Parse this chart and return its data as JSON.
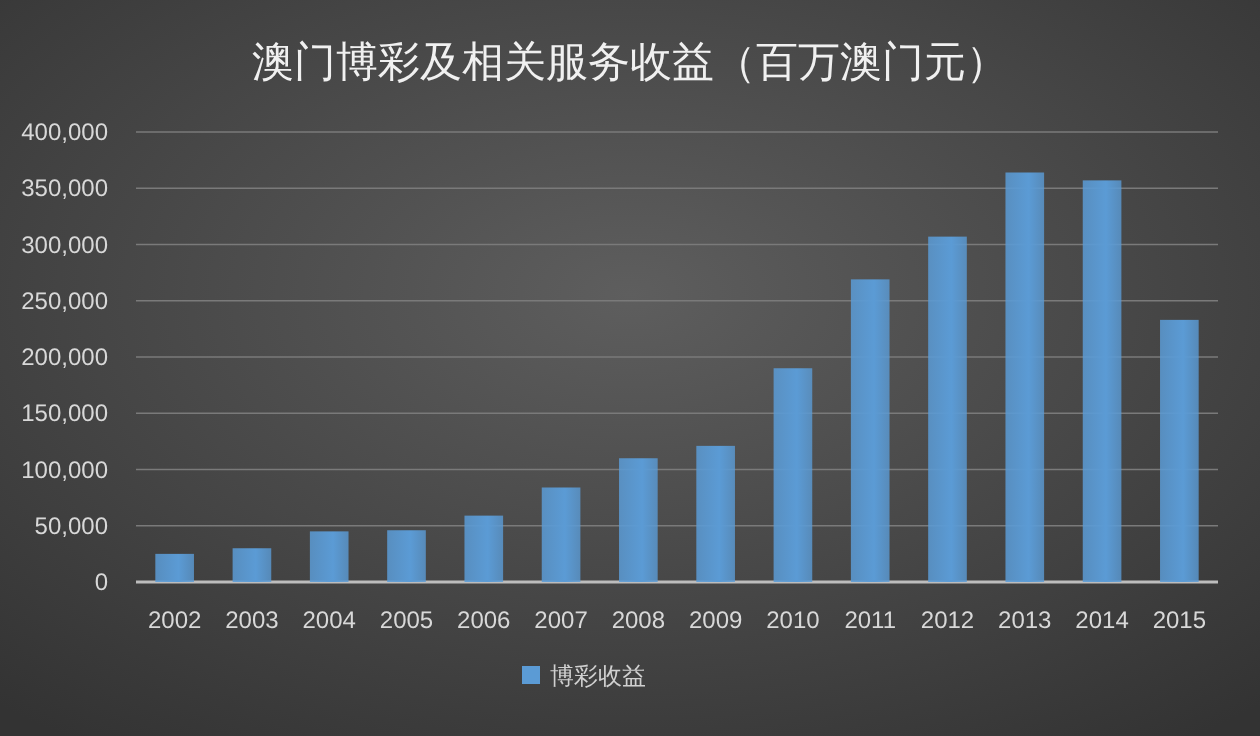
{
  "chart_data": {
    "type": "bar",
    "title": "澳门博彩及相关服务收益（百万澳门元）",
    "categories": [
      "2002",
      "2003",
      "2004",
      "2005",
      "2006",
      "2007",
      "2008",
      "2009",
      "2010",
      "2011",
      "2012",
      "2013",
      "2014",
      "2015"
    ],
    "series": [
      {
        "name": "博彩收益",
        "color": "#5b9bd5",
        "values": [
          25000,
          30000,
          45000,
          46000,
          59000,
          84000,
          110000,
          121000,
          190000,
          269000,
          307000,
          364000,
          357000,
          233000
        ]
      }
    ],
    "ylim": [
      0,
      400000
    ],
    "yticks": [
      0,
      {
        "value": 50000,
        "label": "50,000"
      },
      {
        "value": 100000,
        "label": "100,000"
      },
      {
        "value": 150000,
        "label": "150,000"
      },
      {
        "value": 200000,
        "label": "200,000"
      },
      {
        "value": 250000,
        "label": "250,000"
      },
      {
        "value": 300000,
        "label": "300,000"
      },
      {
        "value": 350000,
        "label": "350,000"
      },
      {
        "value": 400000,
        "label": "400,000"
      }
    ],
    "grid": "y",
    "legend": "bottom"
  }
}
